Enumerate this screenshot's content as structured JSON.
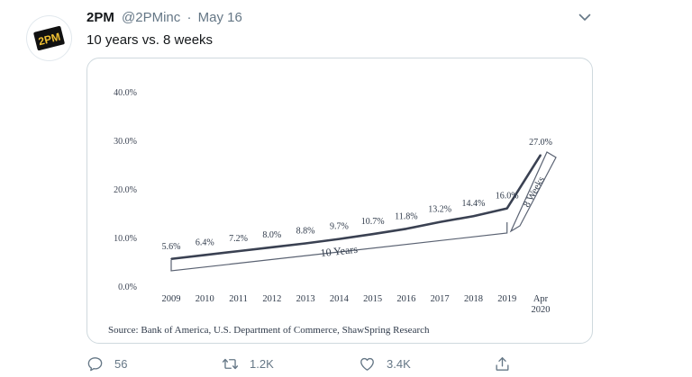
{
  "tweet": {
    "author_name": "2PM",
    "handle": "@2PMinc",
    "separator": "·",
    "date": "May 16",
    "text": "10 years vs. 8 weeks",
    "avatar_icon": "2pm-logo",
    "avatar_text": "2PM",
    "menu_icon": "chevron-down-icon"
  },
  "chart_data": {
    "type": "line",
    "categories": [
      "2009",
      "2010",
      "2011",
      "2012",
      "2013",
      "2014",
      "2015",
      "2016",
      "2017",
      "2018",
      "2019",
      "Apr 2020"
    ],
    "values": [
      5.6,
      6.4,
      7.2,
      8.0,
      8.8,
      9.7,
      10.7,
      11.8,
      13.2,
      14.4,
      16.0,
      27.0
    ],
    "data_labels": [
      "5.6%",
      "6.4%",
      "7.2%",
      "8.0%",
      "8.8%",
      "9.7%",
      "10.7%",
      "11.8%",
      "13.2%",
      "14.4%",
      "16.0%",
      "27.0%"
    ],
    "y_ticks": [
      0,
      10,
      20,
      30,
      40
    ],
    "y_tick_labels": [
      "0.0%",
      "10.0%",
      "20.0%",
      "30.0%",
      "40.0%"
    ],
    "ylim": [
      0,
      40
    ],
    "grid": false,
    "line_color": "#3a4152",
    "annotations": [
      {
        "text": "10 Years",
        "from": "2009",
        "to": "2019"
      },
      {
        "text": "8 Weeks",
        "from": "2019",
        "to": "Apr 2020"
      }
    ],
    "source": "Source: Bank of America, U.S. Department of Commerce, ShawSpring Research"
  },
  "actions": [
    {
      "name": "reply",
      "icon": "reply-icon",
      "count": "56"
    },
    {
      "name": "retweet",
      "icon": "retweet-icon",
      "count": "1.2K"
    },
    {
      "name": "like",
      "icon": "heart-icon",
      "count": "3.4K"
    },
    {
      "name": "share",
      "icon": "share-icon",
      "count": ""
    }
  ]
}
